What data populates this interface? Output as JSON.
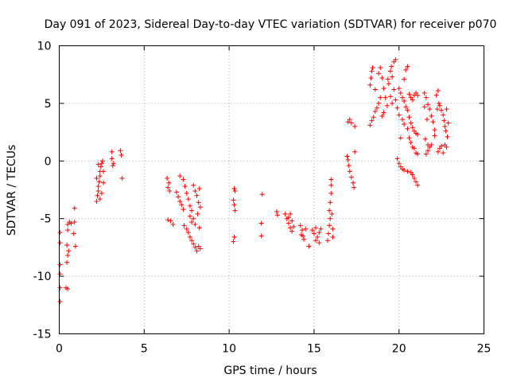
{
  "chart_data": {
    "type": "scatter",
    "title": "Day 091 of 2023, Sidereal Day-to-day VTEC variation (SDTVAR) for receiver p070",
    "xlabel": "GPS time / hours",
    "ylabel": "SDTVAR / TECUs",
    "xlim": [
      0,
      25
    ],
    "ylim": [
      -15,
      10
    ],
    "xticks": [
      "0",
      "5",
      "10",
      "15",
      "20",
      "25"
    ],
    "yticks": [
      "-15",
      "-10",
      "-5",
      "0",
      "5",
      "10"
    ],
    "grid": true,
    "marker": "+",
    "color": "#ff0000",
    "series": [
      {
        "name": "SDTVAR",
        "points": [
          [
            0.05,
            -12.2
          ],
          [
            0.05,
            -11.0
          ],
          [
            0.05,
            -9.8
          ],
          [
            0.05,
            -9.0
          ],
          [
            0.05,
            -7.1
          ],
          [
            0.05,
            -6.2
          ],
          [
            0.4,
            -11.0
          ],
          [
            0.5,
            -11.1
          ],
          [
            0.45,
            -8.8
          ],
          [
            0.5,
            -8.2
          ],
          [
            0.55,
            -7.8
          ],
          [
            0.45,
            -7.3
          ],
          [
            0.5,
            -6.0
          ],
          [
            0.5,
            -5.5
          ],
          [
            0.6,
            -5.3
          ],
          [
            0.7,
            -5.4
          ],
          [
            0.85,
            -6.3
          ],
          [
            0.9,
            -5.3
          ],
          [
            0.9,
            -4.1
          ],
          [
            0.95,
            -7.4
          ],
          [
            2.2,
            -3.5
          ],
          [
            2.25,
            -3.0
          ],
          [
            2.3,
            -2.6
          ],
          [
            2.3,
            -2.2
          ],
          [
            2.35,
            -1.8
          ],
          [
            2.4,
            -1.3
          ],
          [
            2.4,
            -0.9
          ],
          [
            2.45,
            -0.5
          ],
          [
            2.5,
            -0.2
          ],
          [
            2.55,
            0.0
          ],
          [
            2.3,
            -0.3
          ],
          [
            2.2,
            -1.5
          ],
          [
            2.5,
            -2.8
          ],
          [
            2.4,
            -3.3
          ],
          [
            2.6,
            -1.9
          ],
          [
            2.6,
            -0.9
          ],
          [
            3.1,
            0.8
          ],
          [
            3.1,
            0.2
          ],
          [
            3.2,
            -0.2
          ],
          [
            3.15,
            -0.4
          ],
          [
            3.6,
            0.9
          ],
          [
            3.7,
            -1.5
          ],
          [
            3.65,
            0.5
          ],
          [
            6.35,
            -1.5
          ],
          [
            6.4,
            -2.3
          ],
          [
            6.45,
            -1.9
          ],
          [
            6.5,
            -2.6
          ],
          [
            6.4,
            -5.1
          ],
          [
            6.55,
            -5.2
          ],
          [
            6.7,
            -5.5
          ],
          [
            6.9,
            -2.7
          ],
          [
            7.0,
            -3.1
          ],
          [
            7.1,
            -3.5
          ],
          [
            7.2,
            -3.8
          ],
          [
            7.3,
            -4.2
          ],
          [
            7.1,
            -1.3
          ],
          [
            7.3,
            -1.6
          ],
          [
            7.4,
            -2.2
          ],
          [
            7.5,
            -2.8
          ],
          [
            7.6,
            -3.3
          ],
          [
            7.7,
            -3.9
          ],
          [
            7.8,
            -4.3
          ],
          [
            7.35,
            -5.6
          ],
          [
            7.5,
            -5.9
          ],
          [
            7.6,
            -6.2
          ],
          [
            7.7,
            -6.6
          ],
          [
            7.8,
            -6.9
          ],
          [
            7.9,
            -7.2
          ],
          [
            8.0,
            -7.5
          ],
          [
            8.1,
            -7.8
          ],
          [
            8.2,
            -7.4
          ],
          [
            8.3,
            -7.6
          ],
          [
            7.7,
            -4.8
          ],
          [
            7.8,
            -5.3
          ],
          [
            7.9,
            -5.0
          ],
          [
            8.0,
            -5.5
          ],
          [
            8.15,
            -4.6
          ],
          [
            8.25,
            -5.8
          ],
          [
            7.9,
            -2.1
          ],
          [
            8.0,
            -2.6
          ],
          [
            8.1,
            -3.0
          ],
          [
            8.2,
            -3.6
          ],
          [
            8.3,
            -4.0
          ],
          [
            8.25,
            -2.4
          ],
          [
            10.3,
            -2.4
          ],
          [
            10.35,
            -2.6
          ],
          [
            10.25,
            -3.4
          ],
          [
            10.3,
            -3.8
          ],
          [
            10.35,
            -4.3
          ],
          [
            10.3,
            -6.6
          ],
          [
            10.25,
            -7.0
          ],
          [
            11.95,
            -2.9
          ],
          [
            11.9,
            -5.4
          ],
          [
            11.9,
            -6.5
          ],
          [
            12.8,
            -4.4
          ],
          [
            12.85,
            -4.7
          ],
          [
            13.3,
            -4.6
          ],
          [
            13.4,
            -5.0
          ],
          [
            13.5,
            -5.4
          ],
          [
            13.6,
            -5.8
          ],
          [
            13.7,
            -6.1
          ],
          [
            13.5,
            -4.9
          ],
          [
            13.6,
            -4.6
          ],
          [
            13.7,
            -5.2
          ],
          [
            13.8,
            -5.7
          ],
          [
            14.2,
            -5.6
          ],
          [
            14.3,
            -6.0
          ],
          [
            14.35,
            -6.5
          ],
          [
            14.4,
            -6.8
          ],
          [
            14.25,
            -6.4
          ],
          [
            14.5,
            -5.9
          ],
          [
            14.7,
            -7.4
          ],
          [
            14.9,
            -6.0
          ],
          [
            15.0,
            -6.3
          ],
          [
            15.1,
            -5.8
          ],
          [
            15.2,
            -6.6
          ],
          [
            15.3,
            -6.2
          ],
          [
            15.4,
            -5.9
          ],
          [
            15.1,
            -6.9
          ],
          [
            15.3,
            -7.1
          ],
          [
            15.8,
            -6.9
          ],
          [
            15.85,
            -6.3
          ],
          [
            15.9,
            -5.6
          ],
          [
            15.95,
            -5.0
          ],
          [
            15.9,
            -4.3
          ],
          [
            15.95,
            -3.6
          ],
          [
            16.0,
            -2.8
          ],
          [
            16.0,
            -2.1
          ],
          [
            16.0,
            -1.6
          ],
          [
            16.05,
            -4.6
          ],
          [
            16.1,
            -5.9
          ],
          [
            16.1,
            -6.6
          ],
          [
            17.0,
            3.4
          ],
          [
            17.1,
            3.6
          ],
          [
            17.2,
            3.3
          ],
          [
            16.95,
            0.4
          ],
          [
            17.0,
            0.1
          ],
          [
            17.05,
            -0.4
          ],
          [
            17.1,
            -0.9
          ],
          [
            17.2,
            -1.4
          ],
          [
            17.3,
            -1.9
          ],
          [
            17.35,
            -2.3
          ],
          [
            17.4,
            0.8
          ],
          [
            17.4,
            3.0
          ],
          [
            18.3,
            3.1
          ],
          [
            18.4,
            3.5
          ],
          [
            18.5,
            3.8
          ],
          [
            18.6,
            4.3
          ],
          [
            18.7,
            4.6
          ],
          [
            18.8,
            5.0
          ],
          [
            18.9,
            5.5
          ],
          [
            18.3,
            6.6
          ],
          [
            18.35,
            7.2
          ],
          [
            18.4,
            7.8
          ],
          [
            18.45,
            8.1
          ],
          [
            18.6,
            6.2
          ],
          [
            18.8,
            7.6
          ],
          [
            18.9,
            8.1
          ],
          [
            19.0,
            7.2
          ],
          [
            19.1,
            6.3
          ],
          [
            19.2,
            5.5
          ],
          [
            19.3,
            4.8
          ],
          [
            19.0,
            3.9
          ],
          [
            19.1,
            4.2
          ],
          [
            19.35,
            7.1
          ],
          [
            19.4,
            6.7
          ],
          [
            19.5,
            7.8
          ],
          [
            19.55,
            8.2
          ],
          [
            19.6,
            7.3
          ],
          [
            19.7,
            8.6
          ],
          [
            19.8,
            8.8
          ],
          [
            19.5,
            5.6
          ],
          [
            19.6,
            5.0
          ],
          [
            19.7,
            6.2
          ],
          [
            19.8,
            5.3
          ],
          [
            19.9,
            4.6
          ],
          [
            20.0,
            4.0
          ],
          [
            20.0,
            6.3
          ],
          [
            20.1,
            5.9
          ],
          [
            20.2,
            5.5
          ],
          [
            20.3,
            7.1
          ],
          [
            20.4,
            7.9
          ],
          [
            20.5,
            8.2
          ],
          [
            20.3,
            5.2
          ],
          [
            20.4,
            4.7
          ],
          [
            20.5,
            4.4
          ],
          [
            20.6,
            5.8
          ],
          [
            20.7,
            5.5
          ],
          [
            20.8,
            5.3
          ],
          [
            20.9,
            5.7
          ],
          [
            20.2,
            3.6
          ],
          [
            20.3,
            3.2
          ],
          [
            20.5,
            2.8
          ],
          [
            20.6,
            2.0
          ],
          [
            20.7,
            1.6
          ],
          [
            20.8,
            1.2
          ],
          [
            20.9,
            1.1
          ],
          [
            20.1,
            2.0
          ],
          [
            19.9,
            0.2
          ],
          [
            20.0,
            -0.2
          ],
          [
            20.1,
            -0.5
          ],
          [
            20.2,
            -0.7
          ],
          [
            20.3,
            -0.8
          ],
          [
            20.5,
            -0.9
          ],
          [
            20.7,
            -1.0
          ],
          [
            20.8,
            -1.2
          ],
          [
            20.9,
            -1.5
          ],
          [
            21.0,
            -1.8
          ],
          [
            21.1,
            -2.1
          ],
          [
            20.6,
            3.8
          ],
          [
            20.7,
            3.3
          ],
          [
            20.8,
            2.9
          ],
          [
            20.9,
            2.6
          ],
          [
            21.0,
            2.4
          ],
          [
            21.1,
            2.3
          ],
          [
            21.0,
            5.9
          ],
          [
            21.1,
            5.7
          ],
          [
            21.0,
            0.7
          ],
          [
            21.1,
            0.6
          ],
          [
            21.6,
            0.6
          ],
          [
            21.7,
            0.9
          ],
          [
            21.8,
            1.2
          ],
          [
            21.9,
            1.4
          ],
          [
            21.5,
            5.9
          ],
          [
            21.6,
            5.5
          ],
          [
            21.7,
            4.9
          ],
          [
            21.8,
            4.5
          ],
          [
            21.5,
            4.7
          ],
          [
            21.65,
            3.6
          ],
          [
            21.55,
            1.9
          ],
          [
            21.7,
            1.4
          ],
          [
            21.9,
            3.9
          ],
          [
            22.0,
            3.4
          ],
          [
            22.1,
            2.7
          ],
          [
            22.1,
            2.2
          ],
          [
            22.2,
            5.7
          ],
          [
            22.3,
            6.1
          ],
          [
            22.35,
            5.0
          ],
          [
            22.25,
            4.5
          ],
          [
            22.4,
            4.8
          ],
          [
            22.5,
            4.4
          ],
          [
            22.6,
            4.0
          ],
          [
            22.65,
            3.5
          ],
          [
            22.7,
            3.0
          ],
          [
            22.75,
            2.6
          ],
          [
            22.8,
            4.5
          ],
          [
            22.9,
            3.3
          ],
          [
            22.85,
            2.1
          ],
          [
            22.3,
            0.8
          ],
          [
            22.4,
            1.1
          ],
          [
            22.5,
            1.3
          ],
          [
            22.6,
            0.7
          ],
          [
            22.7,
            1.4
          ],
          [
            22.8,
            1.2
          ]
        ]
      }
    ]
  }
}
